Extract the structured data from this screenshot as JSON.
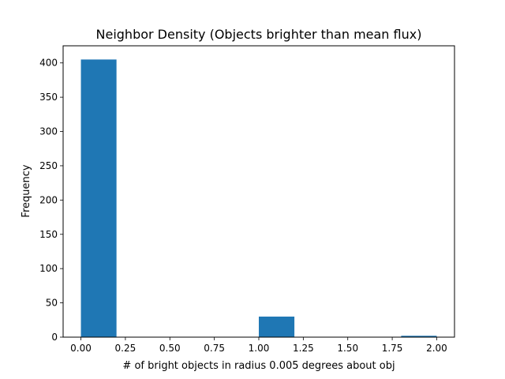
{
  "chart_data": {
    "type": "bar",
    "title": "Neighbor Density (Objects brighter than mean flux)",
    "xlabel": "# of bright objects in radius 0.005 degrees about obj",
    "ylabel": "Frequency",
    "xlim": [
      -0.1,
      2.1
    ],
    "ylim": [
      0,
      425
    ],
    "xticks": [
      "0.00",
      "0.25",
      "0.50",
      "0.75",
      "1.00",
      "1.25",
      "1.50",
      "1.75",
      "2.00"
    ],
    "yticks": [
      "0",
      "50",
      "100",
      "150",
      "200",
      "250",
      "300",
      "350",
      "400"
    ],
    "bins": [
      {
        "x0": 0.0,
        "x1": 0.2,
        "value": 405
      },
      {
        "x0": 0.2,
        "x1": 0.4,
        "value": 0
      },
      {
        "x0": 0.4,
        "x1": 0.6,
        "value": 0
      },
      {
        "x0": 0.6,
        "x1": 0.8,
        "value": 0
      },
      {
        "x0": 0.8,
        "x1": 1.0,
        "value": 0
      },
      {
        "x0": 1.0,
        "x1": 1.2,
        "value": 30
      },
      {
        "x0": 1.2,
        "x1": 1.4,
        "value": 0
      },
      {
        "x0": 1.4,
        "x1": 1.6,
        "value": 0
      },
      {
        "x0": 1.6,
        "x1": 1.8,
        "value": 0
      },
      {
        "x0": 1.8,
        "x1": 2.0,
        "value": 2
      }
    ],
    "bar_color": "#1f77b4",
    "grid": false
  }
}
